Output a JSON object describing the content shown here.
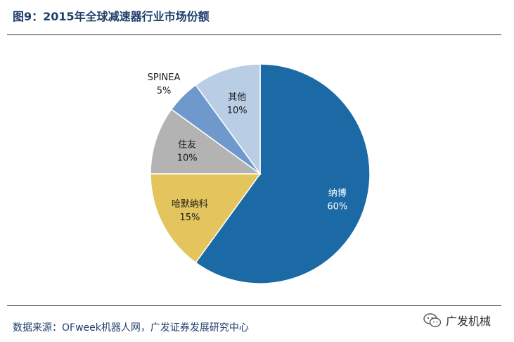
{
  "header": {
    "title": "图9：2015年全球减速器行业市场份额"
  },
  "footer": {
    "source": "数据来源：OFweek机器人网，广发证券发展研究中心",
    "watermark": "广发机械"
  },
  "chart_data": {
    "type": "pie",
    "title": "",
    "slices": [
      {
        "name": "纳博",
        "value": 60,
        "label": "60%",
        "color": "#1b6aa5"
      },
      {
        "name": "哈默纳科",
        "value": 15,
        "label": "15%",
        "color": "#e4c55d"
      },
      {
        "name": "住友",
        "value": 10,
        "label": "10%",
        "color": "#b3b3b3"
      },
      {
        "name": "SPINEA",
        "value": 5,
        "label": "5%",
        "color": "#6f99cc"
      },
      {
        "name": "其他",
        "value": 10,
        "label": "10%",
        "color": "#b9cde5"
      }
    ],
    "start_angle_deg": 0,
    "direction": "clockwise",
    "legend": "none",
    "data_labels": "category and percent"
  }
}
